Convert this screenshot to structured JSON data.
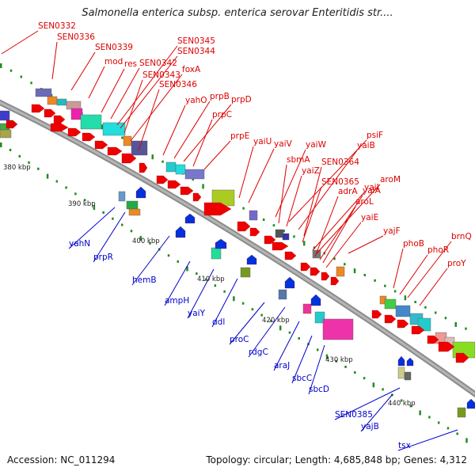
{
  "title": "Salmonella enterica subsp. enterica serovar Enteritidis str....",
  "footer": {
    "accession": "Accession: NC_011294",
    "summary": "Topology: circular; Length: 4,685,848 bp; Genes: 4,312"
  },
  "colors": {
    "forward_label": "#dd0000",
    "reverse_label": "#0000cc",
    "backbone": "#8c8c8c",
    "tick": "#228b22"
  },
  "kbp_markers": [
    "380 kbp",
    "390 kbp",
    "400 kbp",
    "410 kbp",
    "420 kbp",
    "430 kbp",
    "440 kbp"
  ],
  "forward_genes": [
    "SEN0332",
    "SEN0336",
    "SEN0339",
    "mod",
    "res",
    "SEN0342",
    "SEN0345",
    "SEN0344",
    "SEN0343",
    "foxA",
    "SEN0346",
    "yahO",
    "prpB",
    "prpD",
    "prpC",
    "prpE",
    "yaiU",
    "yaiV",
    "yaiW",
    "psiF",
    "sbmA",
    "yaiB",
    "yaiZ",
    "SEN0364",
    "SEN0365",
    "yaiI",
    "aroM",
    "adrA",
    "yaiA",
    "aroL",
    "yaiE",
    "yajF",
    "phoB",
    "brnQ",
    "phoR",
    "proY"
  ],
  "reverse_genes": [
    "yahN",
    "prpR",
    "hemB",
    "ampH",
    "yaiY",
    "ddl",
    "proC",
    "rdgC",
    "araJ",
    "sbcC",
    "sbcD",
    "SEN0385",
    "yajB",
    "tsx"
  ]
}
